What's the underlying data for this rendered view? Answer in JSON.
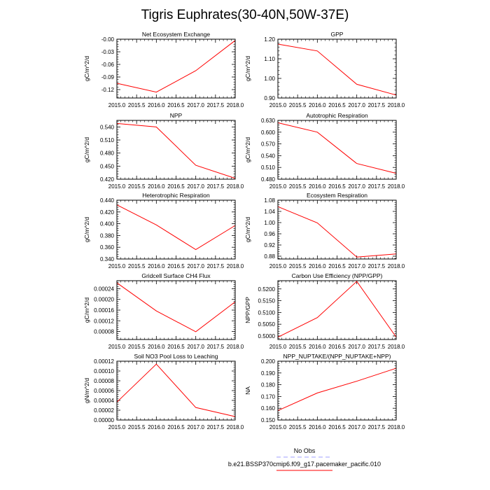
{
  "title": "Tigris Euphrates(30-40N,50W-37E)",
  "legend": {
    "obs_label": "No Obs",
    "obs_color": "#a0a0ff",
    "model_label": "b.e21.BSSP370cmip6.f09_g17.pacemaker_pacific.010",
    "model_color": "#ff0000"
  },
  "chart_data": [
    {
      "type": "line",
      "title": "Net Ecosystem Exchange",
      "ylabel": "gC/m^2/d",
      "xlim": [
        2015.0,
        2018.0
      ],
      "ylim": [
        -0.14,
        0.0
      ],
      "yticks": [
        0.0,
        -0.03,
        -0.06,
        -0.09,
        -0.12
      ],
      "ytick_labels": [
        "-0.00",
        "-0.03",
        "-0.06",
        "-0.09",
        "-0.12"
      ],
      "xticks": [
        2015.0,
        2015.5,
        2016.0,
        2016.5,
        2017.0,
        2017.5,
        2018.0
      ],
      "xtick_labels": [
        "2015.0",
        "2015.5",
        "2016.0",
        "2016.5",
        "2017.0",
        "2017.5",
        "2018.0"
      ],
      "x": [
        2015.0,
        2016.0,
        2017.0,
        2018.0
      ],
      "y": [
        -0.105,
        -0.126,
        -0.075,
        -0.003
      ]
    },
    {
      "type": "line",
      "title": "GPP",
      "ylabel": "gC/m^2/d",
      "xlim": [
        2015.0,
        2018.0
      ],
      "ylim": [
        0.9,
        1.2
      ],
      "yticks": [
        0.9,
        1.0,
        1.1,
        1.2
      ],
      "ytick_labels": [
        "0.90",
        "1.00",
        "1.10",
        "1.20"
      ],
      "xticks": [
        2015.0,
        2015.5,
        2016.0,
        2016.5,
        2017.0,
        2017.5,
        2018.0
      ],
      "xtick_labels": [
        "2015.0",
        "2015.5",
        "2016.0",
        "2016.5",
        "2017.0",
        "2017.5",
        "2018.0"
      ],
      "x": [
        2015.0,
        2016.0,
        2017.0,
        2018.0
      ],
      "y": [
        1.175,
        1.14,
        0.97,
        0.915
      ]
    },
    {
      "type": "line",
      "title": "NPP",
      "ylabel": "gC/m^2/d",
      "xlim": [
        2015.0,
        2018.0
      ],
      "ylim": [
        0.42,
        0.555
      ],
      "yticks": [
        0.42,
        0.45,
        0.48,
        0.51,
        0.54
      ],
      "ytick_labels": [
        "0.420",
        "0.450",
        "0.480",
        "0.510",
        "0.540"
      ],
      "xticks": [
        2015.0,
        2015.5,
        2016.0,
        2016.5,
        2017.0,
        2017.5,
        2018.0
      ],
      "xtick_labels": [
        "2015.0",
        "2015.5",
        "2016.0",
        "2016.5",
        "2017.0",
        "2017.5",
        "2018.0"
      ],
      "x": [
        2015.0,
        2016.0,
        2017.0,
        2018.0
      ],
      "y": [
        0.548,
        0.54,
        0.452,
        0.422
      ]
    },
    {
      "type": "line",
      "title": "Autotrophic Respiration",
      "ylabel": "gC/m^2/d",
      "xlim": [
        2015.0,
        2018.0
      ],
      "ylim": [
        0.48,
        0.63
      ],
      "yticks": [
        0.48,
        0.51,
        0.54,
        0.57,
        0.6,
        0.63
      ],
      "ytick_labels": [
        "0.480",
        "0.510",
        "0.540",
        "0.570",
        "0.600",
        "0.630"
      ],
      "xticks": [
        2015.0,
        2015.5,
        2016.0,
        2016.5,
        2017.0,
        2017.5,
        2018.0
      ],
      "xtick_labels": [
        "2015.0",
        "2015.5",
        "2016.0",
        "2016.5",
        "2017.0",
        "2017.5",
        "2018.0"
      ],
      "x": [
        2015.0,
        2016.0,
        2017.0,
        2018.0
      ],
      "y": [
        0.624,
        0.6,
        0.52,
        0.495
      ]
    },
    {
      "type": "line",
      "title": "Heterotrophic Respiration",
      "ylabel": "gC/m^2/d",
      "xlim": [
        2015.0,
        2018.0
      ],
      "ylim": [
        0.34,
        0.44
      ],
      "yticks": [
        0.34,
        0.36,
        0.38,
        0.4,
        0.42,
        0.44
      ],
      "ytick_labels": [
        "0.340",
        "0.360",
        "0.380",
        "0.400",
        "0.420",
        "0.440"
      ],
      "xticks": [
        2015.0,
        2015.5,
        2016.0,
        2016.5,
        2017.0,
        2017.5,
        2018.0
      ],
      "xtick_labels": [
        "2015.0",
        "2015.5",
        "2016.0",
        "2016.5",
        "2017.0",
        "2017.5",
        "2018.0"
      ],
      "x": [
        2015.0,
        2016.0,
        2017.0,
        2018.0
      ],
      "y": [
        0.432,
        0.398,
        0.356,
        0.397
      ]
    },
    {
      "type": "line",
      "title": "Ecosystem Respiration",
      "ylabel": "gC/m^2/d",
      "xlim": [
        2015.0,
        2018.0
      ],
      "ylim": [
        0.87,
        1.08
      ],
      "yticks": [
        0.88,
        0.92,
        0.96,
        1.0,
        1.04,
        1.08
      ],
      "ytick_labels": [
        "0.88",
        "0.92",
        "0.96",
        "1.00",
        "1.04",
        "1.08"
      ],
      "xticks": [
        2015.0,
        2015.5,
        2016.0,
        2016.5,
        2017.0,
        2017.5,
        2018.0
      ],
      "xtick_labels": [
        "2015.0",
        "2015.5",
        "2016.0",
        "2016.5",
        "2017.0",
        "2017.5",
        "2018.0"
      ],
      "x": [
        2015.0,
        2016.0,
        2017.0,
        2018.0
      ],
      "y": [
        1.057,
        0.999,
        0.877,
        0.888
      ]
    },
    {
      "type": "line",
      "title": "Gridcell Surface CH4 Flux",
      "ylabel": "gC/m^2/d",
      "xlim": [
        2015.0,
        2018.0
      ],
      "ylim": [
        5e-05,
        0.00027
      ],
      "yticks": [
        8e-05,
        0.00012,
        0.00016,
        0.0002,
        0.00024
      ],
      "ytick_labels": [
        "0.00008",
        "0.00012",
        "0.00016",
        "0.00020",
        "0.00024"
      ],
      "xticks": [
        2015.0,
        2015.5,
        2016.0,
        2016.5,
        2017.0,
        2017.5,
        2018.0
      ],
      "xtick_labels": [
        "2015.0",
        "2015.5",
        "2016.0",
        "2016.5",
        "2017.0",
        "2017.5",
        "2018.0"
      ],
      "x": [
        2015.0,
        2016.0,
        2017.0,
        2018.0
      ],
      "y": [
        0.000262,
        0.000157,
        7.9e-05,
        0.000191
      ]
    },
    {
      "type": "line",
      "title": "Carbon Use Efficiency (NPP/GPP)",
      "ylabel": "NPP/GPP",
      "xlim": [
        2015.0,
        2018.0
      ],
      "ylim": [
        0.4985,
        0.5235
      ],
      "yticks": [
        0.5,
        0.505,
        0.51,
        0.515,
        0.52
      ],
      "ytick_labels": [
        "0.5000",
        "0.5050",
        "0.5100",
        "0.5150",
        "0.5200"
      ],
      "xticks": [
        2015.0,
        2015.5,
        2016.0,
        2016.5,
        2017.0,
        2017.5,
        2018.0
      ],
      "xtick_labels": [
        "2015.0",
        "2015.5",
        "2016.0",
        "2016.5",
        "2017.0",
        "2017.5",
        "2018.0"
      ],
      "x": [
        2015.0,
        2016.0,
        2017.0,
        2018.0
      ],
      "y": [
        0.4995,
        0.5078,
        0.5232,
        0.4995
      ]
    },
    {
      "type": "line",
      "title": "Soil NO3 Pool Loss to Leaching",
      "ylabel": "gN/m^2/d",
      "xlim": [
        2015.0,
        2018.0
      ],
      "ylim": [
        0.0,
        0.00012
      ],
      "yticks": [
        0.0,
        2e-05,
        4e-05,
        6e-05,
        8e-05,
        0.0001,
        0.00012
      ],
      "ytick_labels": [
        "0.00000",
        "0.00002",
        "0.00004",
        "0.00006",
        "0.00008",
        "0.00010",
        "0.00012"
      ],
      "xticks": [
        2015.0,
        2015.5,
        2016.0,
        2016.5,
        2017.0,
        2017.5,
        2018.0
      ],
      "xtick_labels": [
        "2015.0",
        "2015.5",
        "2016.0",
        "2016.5",
        "2017.0",
        "2017.5",
        "2018.0"
      ],
      "x": [
        2015.0,
        2016.0,
        2017.0,
        2018.0
      ],
      "y": [
        3.65e-05,
        0.000114,
        2.55e-05,
        7e-06
      ]
    },
    {
      "type": "line",
      "title": "NPP_NUPTAKE/(NPP_NUPTAKE+NPP)",
      "ylabel": "NA",
      "xlim": [
        2015.0,
        2018.0
      ],
      "ylim": [
        0.15,
        0.2
      ],
      "yticks": [
        0.15,
        0.16,
        0.17,
        0.18,
        0.19,
        0.2
      ],
      "ytick_labels": [
        "0.150",
        "0.160",
        "0.170",
        "0.180",
        "0.190",
        "0.200"
      ],
      "xticks": [
        2015.0,
        2015.5,
        2016.0,
        2016.5,
        2017.0,
        2017.5,
        2018.0
      ],
      "xtick_labels": [
        "2015.0",
        "2015.5",
        "2016.0",
        "2016.5",
        "2017.0",
        "2017.5",
        "2018.0"
      ],
      "x": [
        2015.0,
        2016.0,
        2017.0,
        2018.0
      ],
      "y": [
        0.158,
        0.173,
        0.183,
        0.194
      ]
    }
  ]
}
